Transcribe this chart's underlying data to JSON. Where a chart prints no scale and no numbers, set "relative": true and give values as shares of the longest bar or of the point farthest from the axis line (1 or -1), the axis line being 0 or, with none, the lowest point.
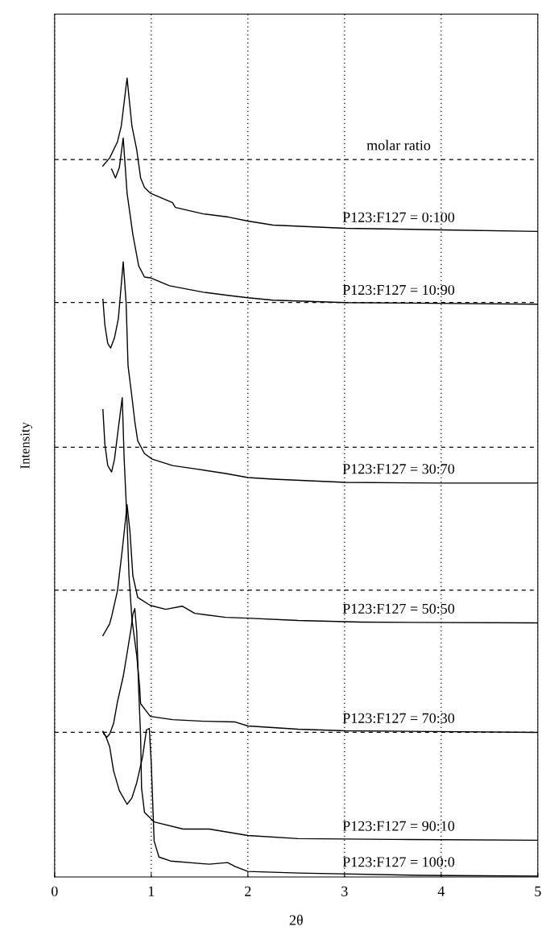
{
  "chart_data": {
    "type": "line",
    "relative": true,
    "xlabel": "2θ",
    "ylabel": "Intensity",
    "xlim": [
      0,
      5
    ],
    "xticks": [
      0,
      1,
      2,
      3,
      4,
      5
    ],
    "grid": "x",
    "legend": false,
    "marker": "none",
    "line_style": "solid",
    "annotations": [
      "molar ratio"
    ],
    "ref_lines": [
      {
        "axis": "y",
        "value": 0.898,
        "color": "#000000",
        "line_style": "dashed"
      },
      {
        "axis": "y",
        "value": 0.719,
        "color": "#000000",
        "line_style": "dashed"
      },
      {
        "axis": "y",
        "value": 0.538,
        "color": "#000000",
        "line_style": "dashed"
      },
      {
        "axis": "y",
        "value": 0.359,
        "color": "#000000",
        "line_style": "dashed"
      },
      {
        "axis": "y",
        "value": 0.181,
        "color": "#000000",
        "line_style": "dashed"
      }
    ],
    "series": [
      {
        "name": "P123:F127 = 0:100",
        "color": "#000000",
        "x": [
          0.5,
          0.57,
          0.65,
          0.69,
          0.75,
          0.8,
          0.85,
          0.89,
          0.93,
          0.99,
          1.22,
          1.25,
          1.54,
          1.8,
          2.0,
          2.26,
          3.01,
          4.02,
          5.0
        ],
        "values": [
          0.89,
          0.9,
          0.92,
          0.94,
          1.0,
          0.94,
          0.91,
          0.875,
          0.863,
          0.856,
          0.844,
          0.838,
          0.83,
          0.826,
          0.821,
          0.816,
          0.812,
          0.81,
          0.808
        ]
      },
      {
        "name": "P123:F127 = 10:90",
        "color": "#000000",
        "x": [
          0.59,
          0.63,
          0.67,
          0.71,
          0.75,
          0.81,
          0.87,
          0.93,
          0.99,
          1.19,
          1.54,
          1.79,
          2.0,
          2.26,
          3.01,
          5.0
        ],
        "values": [
          0.886,
          0.875,
          0.888,
          0.925,
          0.856,
          0.804,
          0.765,
          0.751,
          0.75,
          0.74,
          0.732,
          0.728,
          0.725,
          0.722,
          0.719,
          0.717
        ]
      },
      {
        "name": "P123:F127 = 30:70",
        "color": "#000000",
        "x": [
          0.5,
          0.52,
          0.55,
          0.58,
          0.62,
          0.66,
          0.71,
          0.74,
          0.76,
          0.8,
          0.83,
          0.86,
          0.93,
          1.01,
          1.22,
          1.45,
          1.77,
          2.0,
          2.26,
          3.01,
          4.02,
          5.0
        ],
        "values": [
          0.723,
          0.691,
          0.668,
          0.662,
          0.675,
          0.699,
          0.77,
          0.719,
          0.64,
          0.601,
          0.57,
          0.546,
          0.53,
          0.523,
          0.515,
          0.511,
          0.505,
          0.5,
          0.498,
          0.494,
          0.493,
          0.493
        ]
      },
      {
        "name": "P123:F127 = 50:50",
        "color": "#000000",
        "x": [
          0.5,
          0.57,
          0.59,
          0.65,
          0.7,
          0.75,
          0.78,
          0.81,
          0.86,
          0.99,
          1.15,
          1.32,
          1.45,
          1.77,
          2.0,
          2.52,
          3.17,
          5.0
        ],
        "values": [
          0.302,
          0.317,
          0.326,
          0.358,
          0.409,
          0.466,
          0.432,
          0.377,
          0.35,
          0.34,
          0.335,
          0.339,
          0.33,
          0.325,
          0.324,
          0.321,
          0.319,
          0.318
        ]
      },
      {
        "name": "P123:F127 = 70:30",
        "color": "#000000",
        "x": [
          0.5,
          0.52,
          0.55,
          0.59,
          0.62,
          0.66,
          0.7,
          0.72,
          0.75,
          0.77,
          0.8,
          0.85,
          0.88,
          0.89,
          0.99,
          1.22,
          1.54,
          1.87,
          2.0,
          2.52,
          3.01,
          5.0
        ],
        "values": [
          0.585,
          0.542,
          0.515,
          0.507,
          0.523,
          0.562,
          0.6,
          0.523,
          0.444,
          0.377,
          0.323,
          0.277,
          0.238,
          0.217,
          0.201,
          0.197,
          0.195,
          0.194,
          0.189,
          0.185,
          0.183,
          0.181
        ]
      },
      {
        "name": "P123:F127 = 90:10",
        "color": "#000000",
        "x": [
          0.5,
          0.51,
          0.54,
          0.57,
          0.61,
          0.65,
          0.71,
          0.75,
          0.79,
          0.81,
          0.83,
          0.85,
          0.87,
          0.89,
          0.9,
          0.93,
          1.03,
          1.33,
          1.6,
          2.0,
          2.52,
          3.5,
          5.0
        ],
        "values": [
          0.182,
          0.179,
          0.175,
          0.179,
          0.192,
          0.219,
          0.251,
          0.28,
          0.31,
          0.329,
          0.336,
          0.307,
          0.235,
          0.176,
          0.111,
          0.081,
          0.069,
          0.06,
          0.06,
          0.052,
          0.048,
          0.047,
          0.046
        ]
      },
      {
        "name": "P123:F127 = 100:0",
        "color": "#000000",
        "x": [
          0.5,
          0.53,
          0.57,
          0.61,
          0.67,
          0.75,
          0.8,
          0.85,
          0.91,
          0.95,
          0.98,
          1.0,
          1.03,
          1.08,
          1.2,
          1.6,
          1.79,
          1.87,
          2.0,
          2.52,
          3.82,
          5.0
        ],
        "values": [
          0.182,
          0.176,
          0.163,
          0.133,
          0.108,
          0.091,
          0.099,
          0.118,
          0.15,
          0.184,
          0.186,
          0.143,
          0.045,
          0.025,
          0.02,
          0.016,
          0.018,
          0.013,
          0.007,
          0.005,
          0.002,
          0.001
        ]
      }
    ]
  }
}
